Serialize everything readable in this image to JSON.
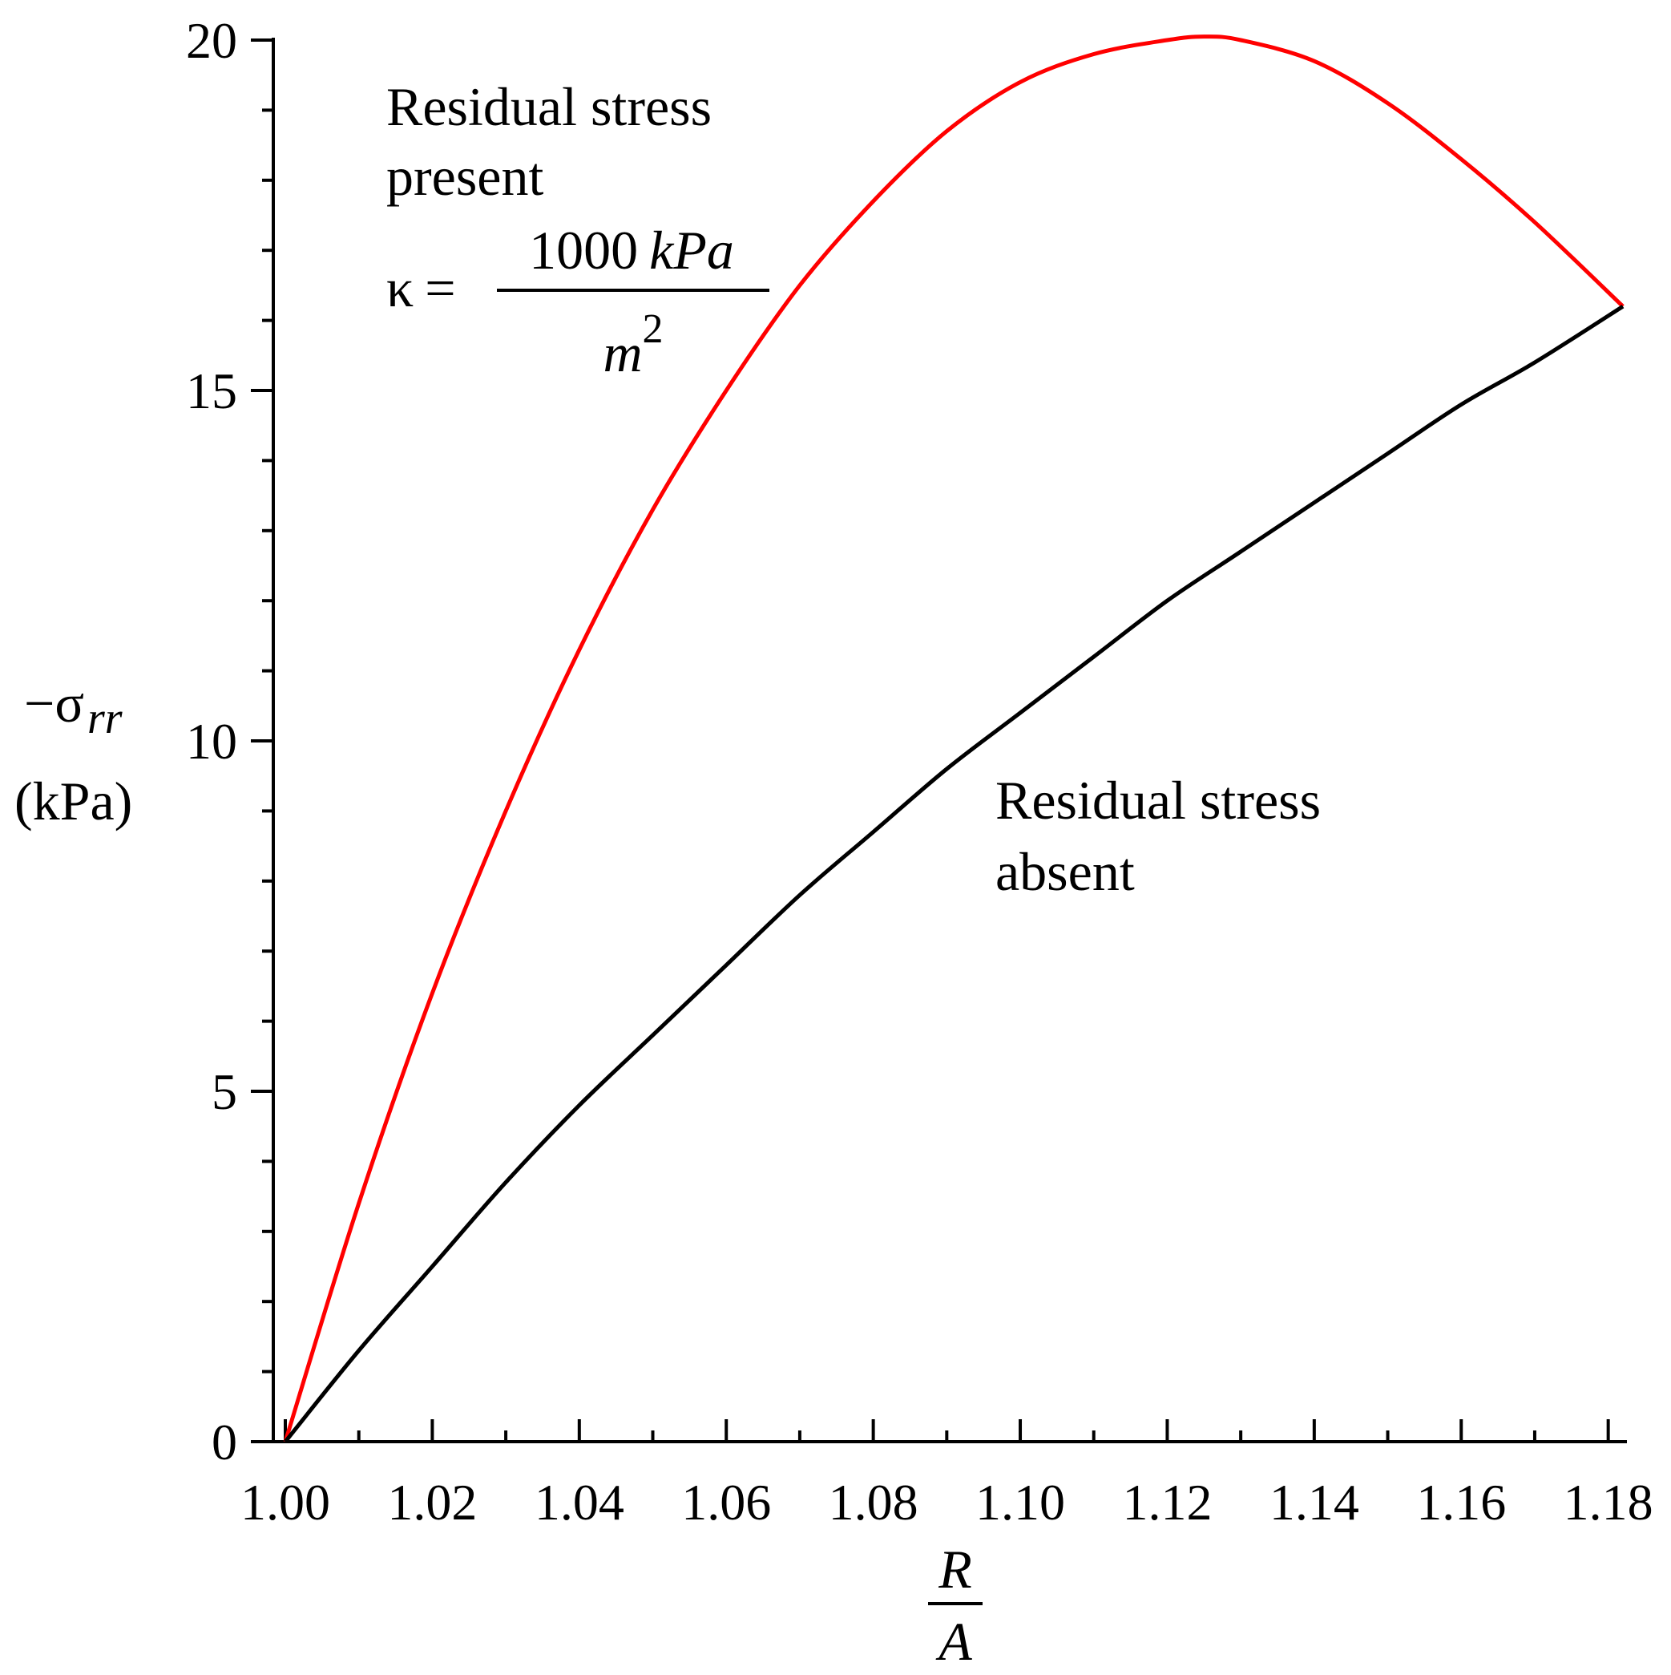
{
  "chart_data": {
    "type": "line",
    "title": "",
    "xlim": [
      1.0,
      1.182
    ],
    "ylim": [
      0,
      20
    ],
    "x_ticks": [
      {
        "value": 1.0,
        "label": "1.00"
      },
      {
        "value": 1.02,
        "label": "1.02"
      },
      {
        "value": 1.04,
        "label": "1.04"
      },
      {
        "value": 1.06,
        "label": "1.06"
      },
      {
        "value": 1.08,
        "label": "1.08"
      },
      {
        "value": 1.1,
        "label": "1.10"
      },
      {
        "value": 1.12,
        "label": "1.12"
      },
      {
        "value": 1.14,
        "label": "1.14"
      },
      {
        "value": 1.16,
        "label": "1.16"
      },
      {
        "value": 1.18,
        "label": "1.18"
      }
    ],
    "y_ticks": [
      {
        "value": 0,
        "label": "0"
      },
      {
        "value": 5,
        "label": "5"
      },
      {
        "value": 10,
        "label": "10"
      },
      {
        "value": 15,
        "label": "15"
      },
      {
        "value": 20,
        "label": "20"
      }
    ],
    "x_minor_step": 0.01,
    "y_minor_step": 1,
    "xlabel": {
      "numerator": "R",
      "denominator": "A"
    },
    "ylabel": {
      "prefix": "−σ",
      "subscript": "rr",
      "unit": "(kPa)"
    },
    "series": [
      {
        "name": "Residual stress present",
        "color": "#ff0000",
        "x": [
          1.0,
          1.01,
          1.02,
          1.03,
          1.04,
          1.05,
          1.06,
          1.07,
          1.08,
          1.09,
          1.1,
          1.11,
          1.12,
          1.125,
          1.13,
          1.14,
          1.15,
          1.16,
          1.17,
          1.182
        ],
        "y": [
          0.0,
          3.4,
          6.4,
          9.0,
          11.3,
          13.3,
          15.0,
          16.5,
          17.7,
          18.7,
          19.4,
          19.8,
          20.0,
          20.05,
          20.0,
          19.7,
          19.1,
          18.3,
          17.4,
          16.2
        ]
      },
      {
        "name": "Residual stress absent",
        "color": "#000000",
        "x": [
          1.0,
          1.01,
          1.02,
          1.03,
          1.04,
          1.05,
          1.06,
          1.07,
          1.08,
          1.09,
          1.1,
          1.11,
          1.12,
          1.13,
          1.14,
          1.15,
          1.16,
          1.17,
          1.182
        ],
        "y": [
          0.0,
          1.3,
          2.5,
          3.7,
          4.8,
          5.8,
          6.8,
          7.8,
          8.7,
          9.6,
          10.4,
          11.2,
          12.0,
          12.7,
          13.4,
          14.1,
          14.8,
          15.4,
          16.2
        ]
      }
    ],
    "annotations": {
      "present": {
        "line1": "Residual stress",
        "line2": "present",
        "kappa_symbol": "κ",
        "equals": "=",
        "numerator": "1000",
        "numerator_unit": "kPa",
        "denominator_base": "m",
        "denominator_exp": "2"
      },
      "absent": {
        "line1": "Residual stress",
        "line2": "absent"
      }
    }
  }
}
